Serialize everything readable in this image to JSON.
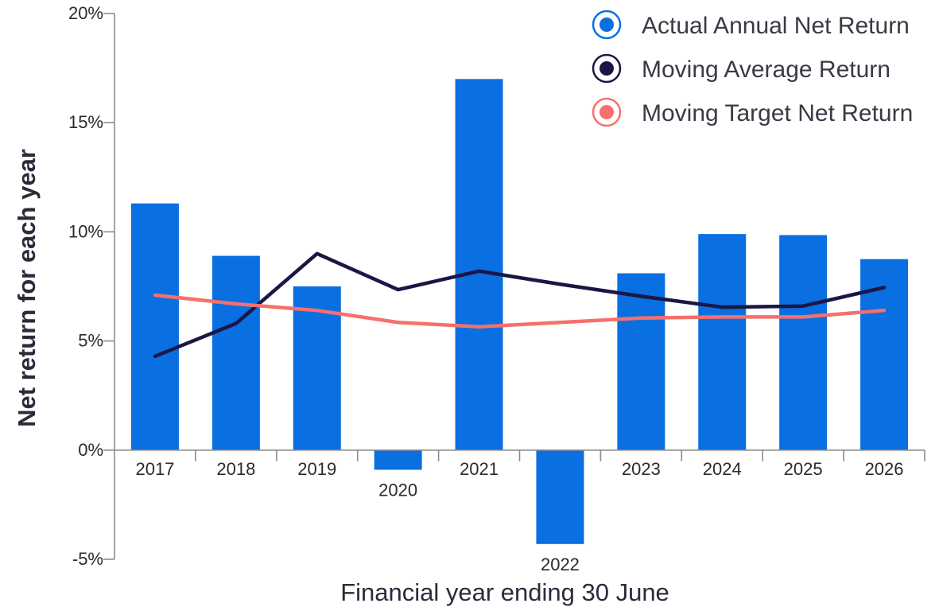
{
  "chart_data": {
    "type": "bar",
    "title": "",
    "xlabel": "Financial year ending 30 June",
    "ylabel": "Net return for each year",
    "ylim": [
      -5,
      20
    ],
    "yticks": [
      -5,
      0,
      5,
      10,
      15,
      20
    ],
    "ytick_labels": [
      "-5%",
      "0%",
      "5%",
      "10%",
      "15%",
      "20%"
    ],
    "categories": [
      "2017",
      "2018",
      "2019",
      "2020",
      "2021",
      "2022",
      "2023",
      "2024",
      "2025",
      "2026"
    ],
    "series": [
      {
        "name": "Actual Annual Net Return",
        "type": "bar",
        "color": "#0a6fe0",
        "values": [
          11.3,
          8.9,
          7.5,
          -0.9,
          17.0,
          -4.3,
          8.1,
          9.9,
          9.85,
          8.75
        ]
      },
      {
        "name": "Moving Average Return",
        "type": "line",
        "color": "#1a1746",
        "values": [
          4.3,
          5.8,
          9.0,
          7.35,
          8.2,
          7.6,
          7.05,
          6.55,
          6.6,
          7.45
        ]
      },
      {
        "name": "Moving Target Net Return",
        "type": "line",
        "color": "#f5706c",
        "values": [
          7.1,
          6.7,
          6.4,
          5.85,
          5.65,
          5.85,
          6.05,
          6.1,
          6.1,
          6.4
        ]
      }
    ],
    "legend_position": "top-right",
    "grid": false
  }
}
